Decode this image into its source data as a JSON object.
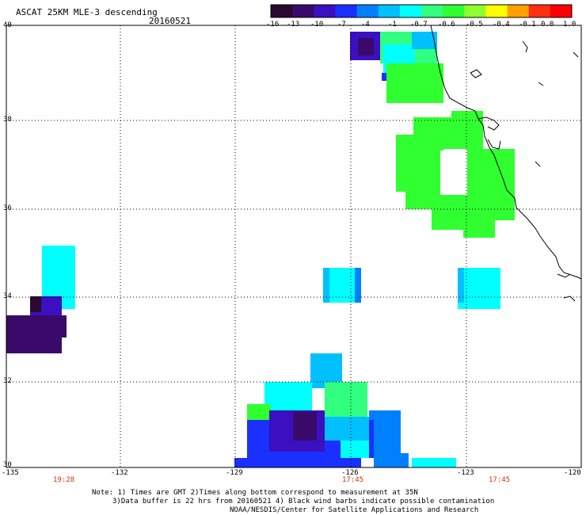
{
  "header": {
    "title": "ASCAT 25KM MLE-3 descending",
    "date": "20160521"
  },
  "colorbar": {
    "ticks": [
      "-16",
      "-13",
      "-10",
      "-7",
      "-4",
      "-1",
      "-0.7",
      "-0.6",
      "-0.5",
      "-0.4",
      "-0.1",
      "0.0",
      "1.0"
    ],
    "colors": [
      "#2a0830",
      "#3a0a6a",
      "#3a10c0",
      "#1a30ff",
      "#0080ff",
      "#00c0ff",
      "#00ffff",
      "#30ff80",
      "#30ff30",
      "#90ff30",
      "#ffff00",
      "#ffa000",
      "#ff3010",
      "#ff0000"
    ]
  },
  "map": {
    "lat_labels": [
      "40",
      "38",
      "36",
      "34",
      "32",
      "30"
    ],
    "lon_labels": [
      "-135",
      "-132",
      "-129",
      "-126",
      "-123",
      "-120"
    ],
    "time_labels": [
      {
        "text": "19:28",
        "lon": -133.5
      },
      {
        "text": "17:45",
        "lon": -126
      },
      {
        "text": "17:45",
        "lon": -122.2
      }
    ],
    "lon_range": [
      -135,
      -120
    ],
    "lat_range": [
      30,
      40
    ],
    "grid": "dotted"
  },
  "notes": {
    "line1": "Note: 1) Times are GMT 2)Times along bottom correspond to measurement at 35N",
    "line2": "3)Data buffer is 22 hrs from 20160521 4) Black wind barbs indicate possible contamination",
    "line3": "NOAA/NESDIS/Center for Satellite Applications and Research"
  }
}
